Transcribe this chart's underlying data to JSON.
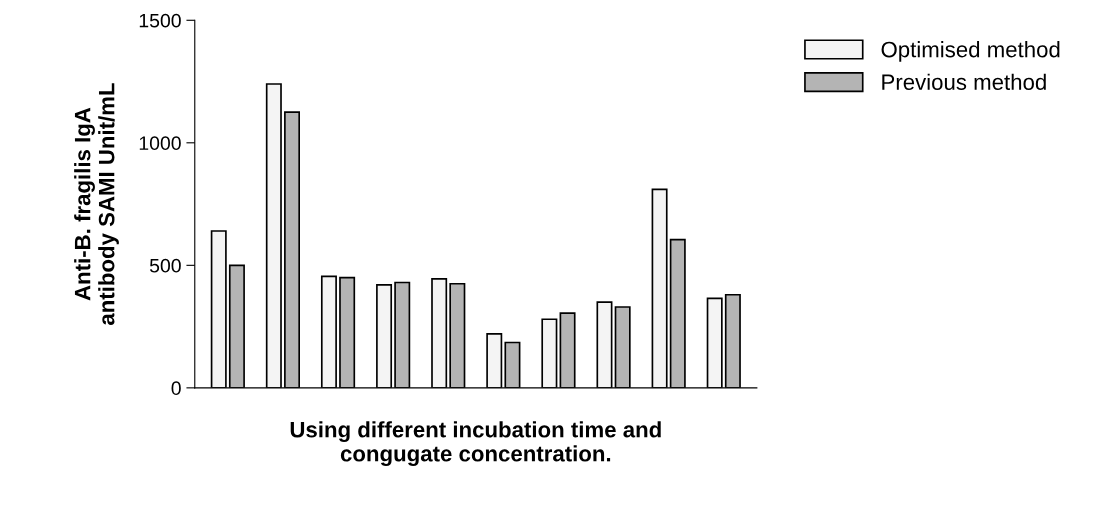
{
  "chart_data": {
    "type": "bar",
    "xlabel": "Using different incubation time and\ncongugate concentration.",
    "ylabel": "Anti-B. fragilis IgA\nantibody SAMI Unit/mL",
    "categories": [
      null,
      null,
      null,
      null,
      null,
      null,
      null,
      null,
      null,
      null
    ],
    "series": [
      {
        "name": "Optimised method",
        "color": "#f4f4f4",
        "values": [
          640,
          1240,
          455,
          420,
          445,
          220,
          280,
          350,
          810,
          365
        ]
      },
      {
        "name": "Previous method",
        "color": "#b4b4b4",
        "values": [
          500,
          1125,
          450,
          430,
          425,
          185,
          305,
          330,
          605,
          380
        ]
      }
    ],
    "ylim": [
      0,
      1500
    ],
    "yticks": [
      0,
      500,
      1000,
      1500
    ],
    "grid": false,
    "legend": "top right"
  }
}
